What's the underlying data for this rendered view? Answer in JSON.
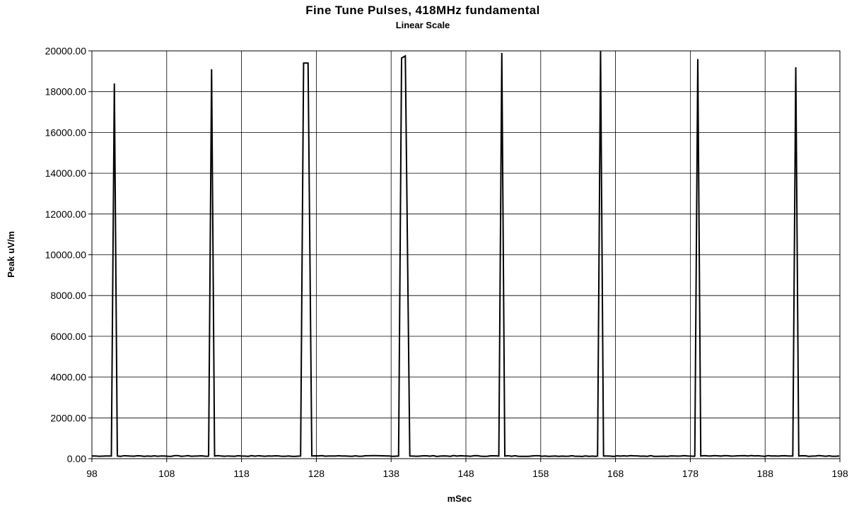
{
  "chart_data": {
    "type": "line",
    "title": "Fine Tune Pulses,  418MHz fundamental",
    "subtitle": "Linear Scale",
    "xlabel": "mSec",
    "ylabel": "Peak uV/m",
    "xlim": [
      98,
      198
    ],
    "ylim": [
      0,
      20000
    ],
    "x_ticks": [
      "98",
      "108",
      "118",
      "128",
      "138",
      "148",
      "158",
      "168",
      "178",
      "188",
      "198"
    ],
    "y_ticks": [
      "0.00",
      "2000.00",
      "4000.00",
      "6000.00",
      "8000.00",
      "10000.00",
      "12000.00",
      "14000.00",
      "16000.00",
      "18000.00",
      "20000.00"
    ],
    "grid": true,
    "legend": "none",
    "line_color": "#000000",
    "baseline": 130,
    "pulses": [
      {
        "x_start": 100.6,
        "x_end": 101.4,
        "peaks": [
          [
            101.0,
            18400
          ]
        ]
      },
      {
        "x_start": 113.6,
        "x_end": 114.4,
        "peaks": [
          [
            114.0,
            19100
          ]
        ]
      },
      {
        "x_start": 125.9,
        "x_end": 127.4,
        "peaks": [
          [
            126.3,
            19400
          ],
          [
            126.9,
            19400
          ]
        ]
      },
      {
        "x_start": 139.0,
        "x_end": 140.5,
        "peaks": [
          [
            139.4,
            19650
          ],
          [
            139.9,
            19750
          ]
        ]
      },
      {
        "x_start": 152.4,
        "x_end": 153.2,
        "peaks": [
          [
            152.8,
            19900
          ]
        ]
      },
      {
        "x_start": 165.6,
        "x_end": 166.4,
        "peaks": [
          [
            166.0,
            20000
          ]
        ]
      },
      {
        "x_start": 178.6,
        "x_end": 179.4,
        "peaks": [
          [
            179.0,
            19600
          ]
        ]
      },
      {
        "x_start": 191.7,
        "x_end": 192.5,
        "peaks": [
          [
            192.1,
            19200
          ]
        ]
      }
    ]
  }
}
